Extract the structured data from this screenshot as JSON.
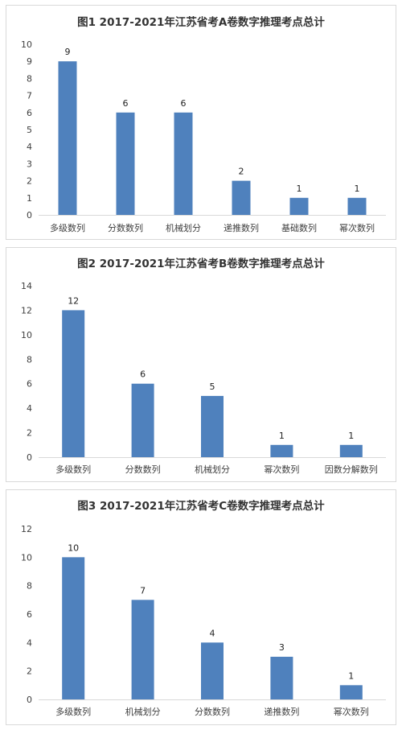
{
  "chart_data": [
    {
      "type": "bar",
      "title": "图1  2017-2021年江苏省考A卷数字推理考点总计",
      "categories": [
        "多级数列",
        "分数数列",
        "机械划分",
        "递推数列",
        "基础数列",
        "幂次数列"
      ],
      "values": [
        9,
        6,
        6,
        2,
        1,
        1
      ],
      "ylim": [
        0,
        10
      ],
      "yticks": [
        0,
        1,
        2,
        3,
        4,
        5,
        6,
        7,
        8,
        9,
        10
      ],
      "color": "#4f81bd",
      "grid": false,
      "legend": "none"
    },
    {
      "type": "bar",
      "title": "图2 2017-2021年江苏省考B卷数字推理考点总计",
      "categories": [
        "多级数列",
        "分数数列",
        "机械划分",
        "幂次数列",
        "因数分解数列"
      ],
      "values": [
        12,
        6,
        5,
        1,
        1
      ],
      "ylim": [
        0,
        14
      ],
      "yticks": [
        0,
        2,
        4,
        6,
        8,
        10,
        12,
        14
      ],
      "color": "#4f81bd",
      "grid": false,
      "legend": "none"
    },
    {
      "type": "bar",
      "title": "图3 2017-2021年江苏省考C卷数字推理考点总计",
      "categories": [
        "多级数列",
        "机械划分",
        "分数数列",
        "递推数列",
        "幂次数列"
      ],
      "values": [
        10,
        7,
        4,
        3,
        1
      ],
      "ylim": [
        0,
        12
      ],
      "yticks": [
        0,
        2,
        4,
        6,
        8,
        10,
        12
      ],
      "color": "#4f81bd",
      "grid": false,
      "legend": "none"
    }
  ]
}
